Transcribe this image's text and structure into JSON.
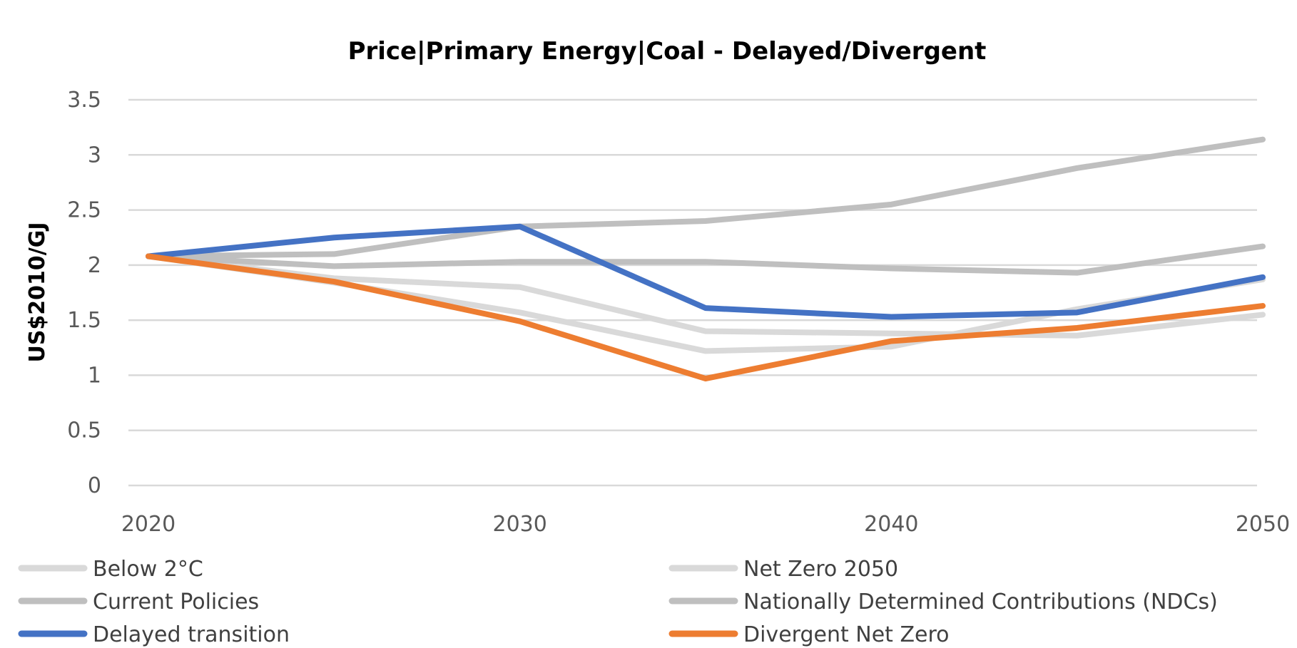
{
  "chart_data": {
    "type": "line",
    "title": "Price|Primary Energy|Coal - Delayed/Divergent",
    "xlabel": "",
    "ylabel": "US$2010/GJ",
    "x": [
      2020,
      2025,
      2030,
      2035,
      2040,
      2045,
      2050
    ],
    "x_ticks": [
      "2020",
      "2030",
      "2040",
      "2050"
    ],
    "y_ticks": [
      "0",
      "0.5",
      "1",
      "1.5",
      "2",
      "2.5",
      "3",
      "3.5"
    ],
    "ylim": [
      0,
      3.5
    ],
    "grid": "horizontal",
    "legend_position": "bottom",
    "series": [
      {
        "name": "Below 2°C",
        "color": "#d9d9d9",
        "values": [
          2.08,
          1.88,
          1.8,
          1.4,
          1.38,
          1.36,
          1.55
        ]
      },
      {
        "name": "Net Zero 2050",
        "color": "#d9d9d9",
        "values": [
          2.08,
          1.84,
          1.57,
          1.22,
          1.26,
          1.6,
          1.87
        ]
      },
      {
        "name": "Current Policies",
        "color": "#bfbfbf",
        "values": [
          2.08,
          2.1,
          2.35,
          2.4,
          2.55,
          2.88,
          3.14
        ]
      },
      {
        "name": "Nationally Determined Contributions (NDCs)",
        "color": "#bfbfbf",
        "values": [
          2.08,
          1.99,
          2.03,
          2.03,
          1.97,
          1.93,
          2.17
        ]
      },
      {
        "name": "Delayed transition",
        "color": "#4472c4",
        "values": [
          2.08,
          2.25,
          2.35,
          1.61,
          1.53,
          1.57,
          1.89
        ]
      },
      {
        "name": "Divergent Net Zero",
        "color": "#ed7d31",
        "values": [
          2.08,
          1.85,
          1.49,
          0.97,
          1.31,
          1.43,
          1.63
        ]
      }
    ]
  }
}
